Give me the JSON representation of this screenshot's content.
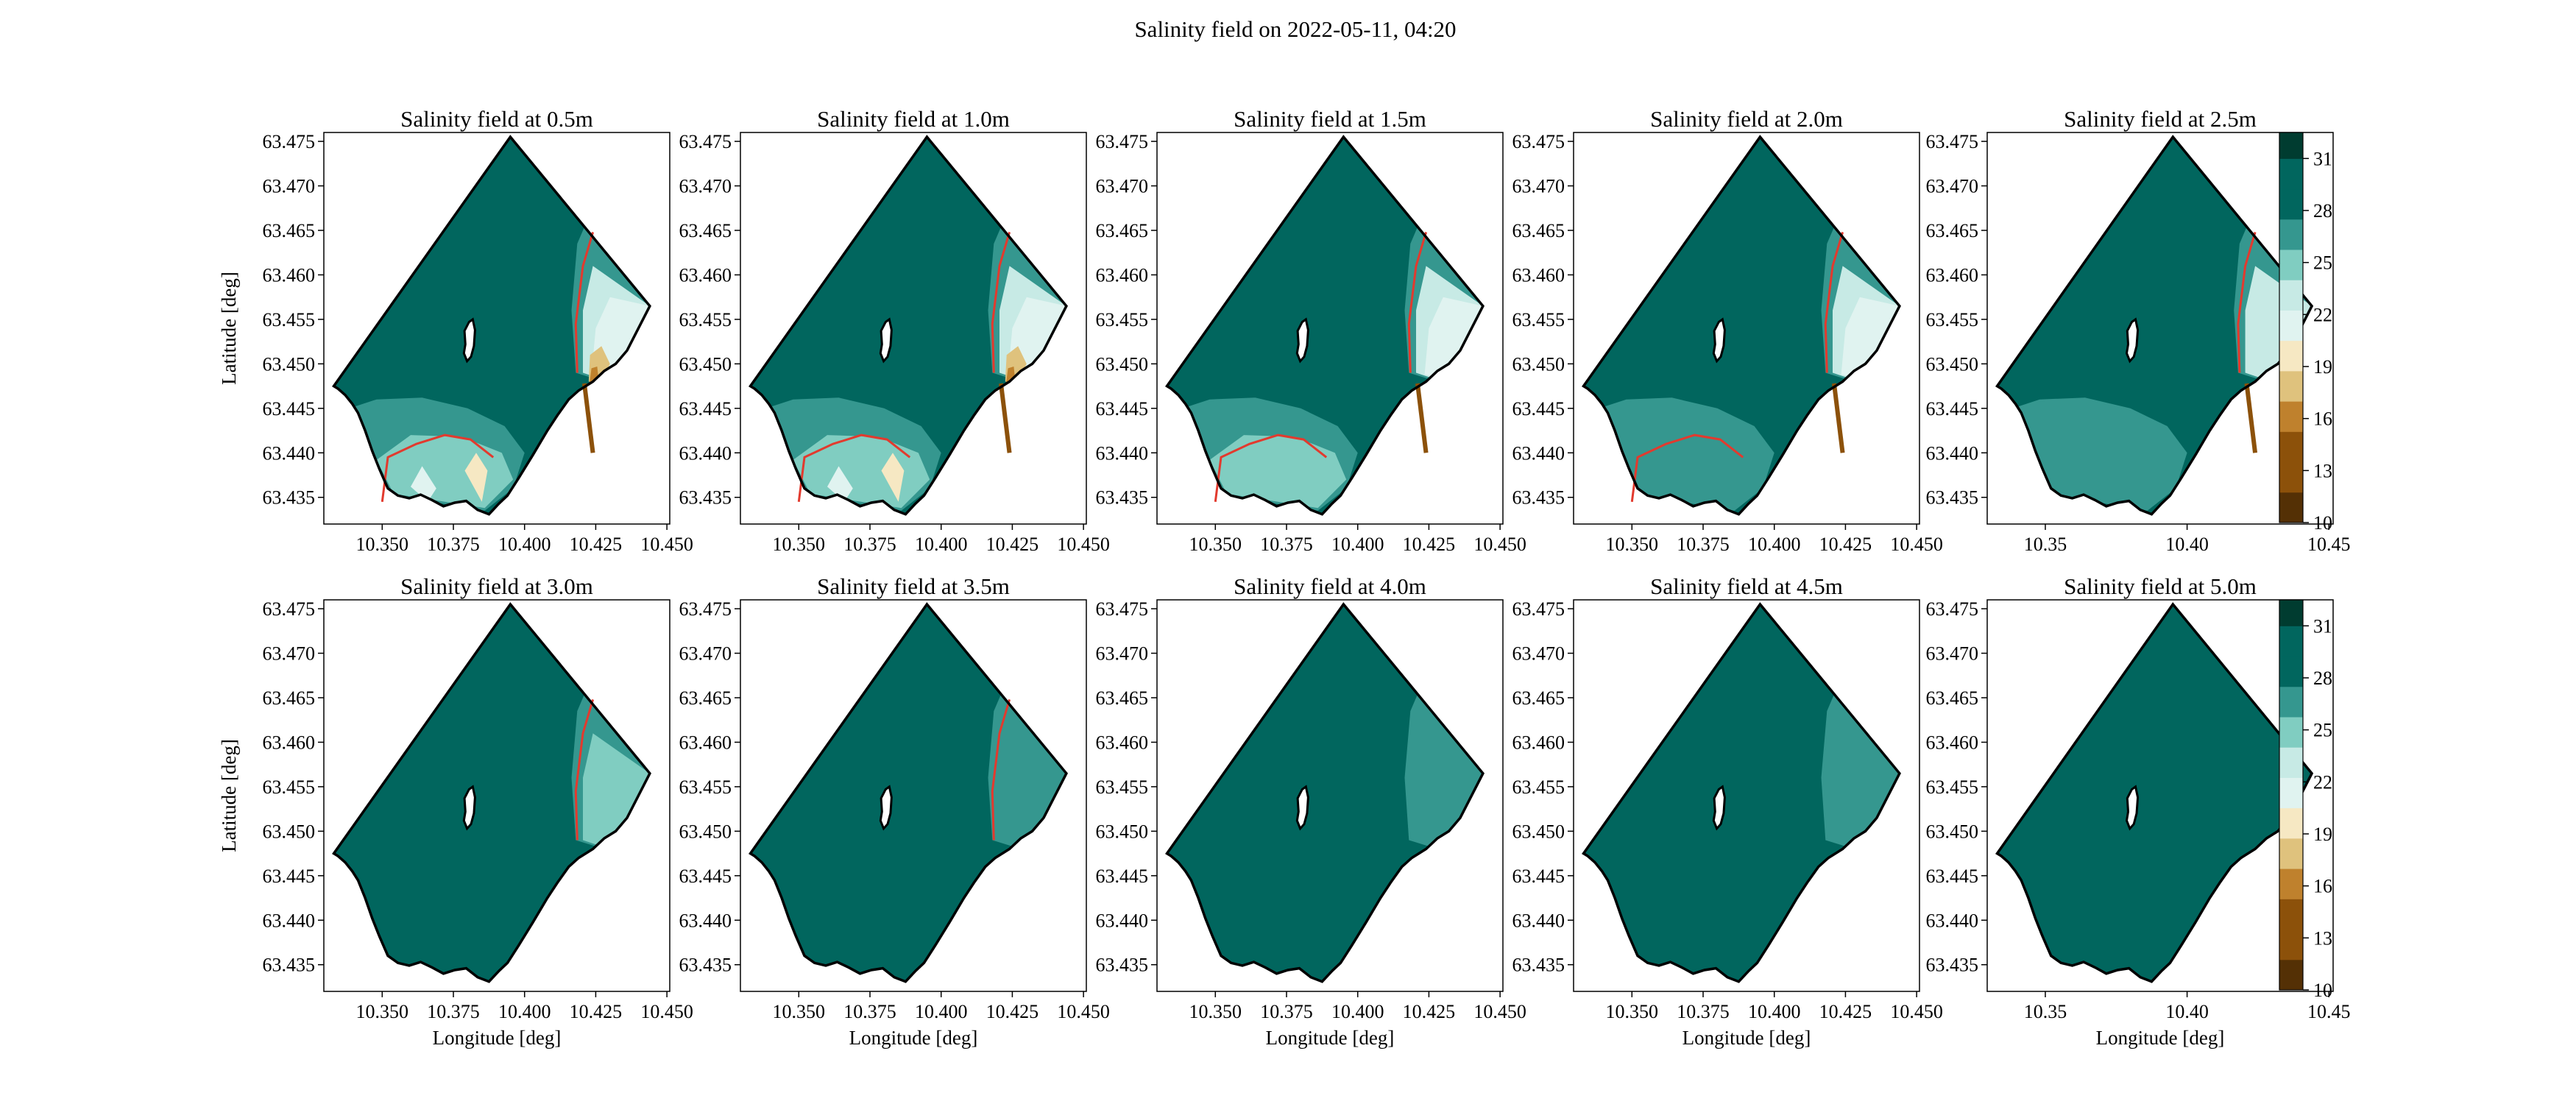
{
  "figure": {
    "title": "Salinity field on 2022-05-11, 04:20"
  },
  "colors": {
    "land": "#ffffff",
    "coastline": "#000000",
    "isohaline": "#e23a2e",
    "levels": [
      "#543005",
      "#8c510a",
      "#bf812d",
      "#dfc27d",
      "#f6e8c3",
      "#e0f3f0",
      "#c7eae5",
      "#80cdc1",
      "#35978f",
      "#01665e",
      "#003c30"
    ]
  },
  "chart_data": {
    "type": "contour_map_grid",
    "x_label": "Longitude [deg]",
    "y_label": "Latitude [deg]",
    "ylim": [
      63.432,
      63.476
    ],
    "y_ticks": [
      "63.435",
      "63.440",
      "63.445",
      "63.450",
      "63.455",
      "63.460",
      "63.465",
      "63.470",
      "63.475"
    ],
    "y_tick_values": [
      63.435,
      63.44,
      63.445,
      63.45,
      63.455,
      63.46,
      63.465,
      63.47,
      63.475
    ],
    "x_ticks_a": [
      "10.350",
      "10.375",
      "10.400",
      "10.425",
      "10.450"
    ],
    "x_tick_values_a": [
      10.35,
      10.375,
      10.4,
      10.425,
      10.45
    ],
    "xlim_a": [
      10.3295,
      10.451
    ],
    "x_ticks_b": [
      "10.35",
      "10.40",
      "10.45"
    ],
    "x_tick_values_b": [
      10.35,
      10.4,
      10.45
    ],
    "xlim_b": [
      10.3295,
      10.4515
    ],
    "colorbar": {
      "levels": [
        10,
        11.75,
        13.5,
        15.25,
        17,
        18.75,
        20.5,
        22.25,
        24,
        25.75,
        27.5,
        29.25,
        31,
        32.5
      ],
      "tick_labels": [
        "10",
        "13",
        "16",
        "19",
        "22",
        "25",
        "28",
        "31"
      ],
      "tick_values": [
        10,
        13,
        16,
        19,
        22,
        25,
        28,
        31
      ]
    },
    "panels": [
      {
        "title": "Salinity field at 0.5m",
        "depth_m": 0.5
      },
      {
        "title": "Salinity field at 1.0m",
        "depth_m": 1.0
      },
      {
        "title": "Salinity field at 1.5m",
        "depth_m": 1.5
      },
      {
        "title": "Salinity field at 2.0m",
        "depth_m": 2.0
      },
      {
        "title": "Salinity field at 2.5m",
        "depth_m": 2.5
      },
      {
        "title": "Salinity field at 3.0m",
        "depth_m": 3.0
      },
      {
        "title": "Salinity field at 3.5m",
        "depth_m": 3.5
      },
      {
        "title": "Salinity field at 4.0m",
        "depth_m": 4.0
      },
      {
        "title": "Salinity field at 4.5m",
        "depth_m": 4.5
      },
      {
        "title": "Salinity field at 5.0m",
        "depth_m": 5.0
      }
    ]
  }
}
